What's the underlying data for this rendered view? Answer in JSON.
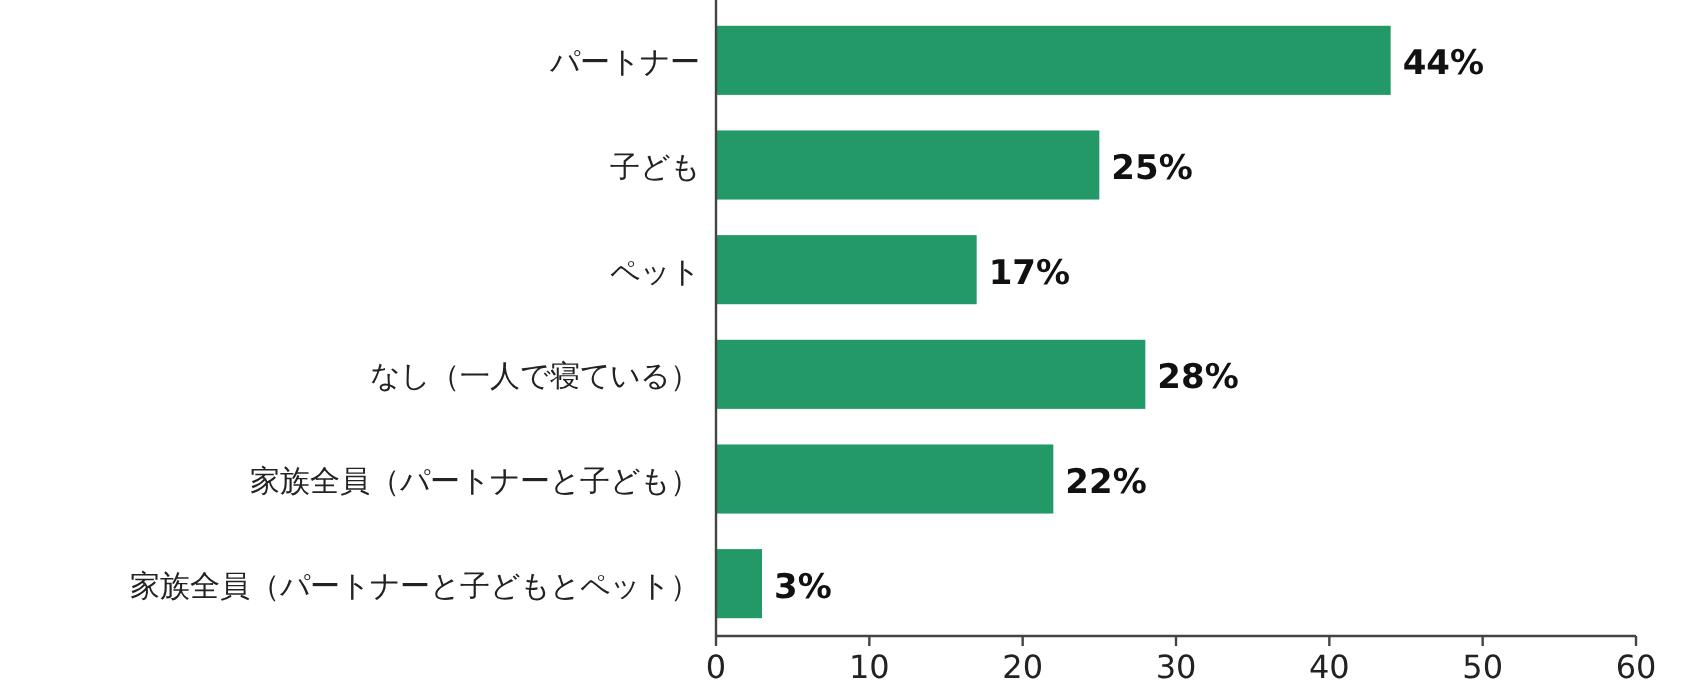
{
  "chart_data": {
    "type": "bar",
    "orientation": "horizontal",
    "categories": [
      "パートナー",
      "子ども",
      "ペット",
      "なし（一人で寝ている）",
      "家族全員（パートナーと子ども）",
      "家族全員（パートナーと子どもとペット）"
    ],
    "values": [
      44,
      25,
      17,
      28,
      22,
      3
    ],
    "value_labels": [
      "44%",
      "25%",
      "17%",
      "28%",
      "22%",
      "3%"
    ],
    "color": "#229966",
    "xlim": [
      0,
      60
    ],
    "xticks": [
      0,
      10,
      20,
      30,
      40,
      50,
      60
    ],
    "grid": false
  }
}
